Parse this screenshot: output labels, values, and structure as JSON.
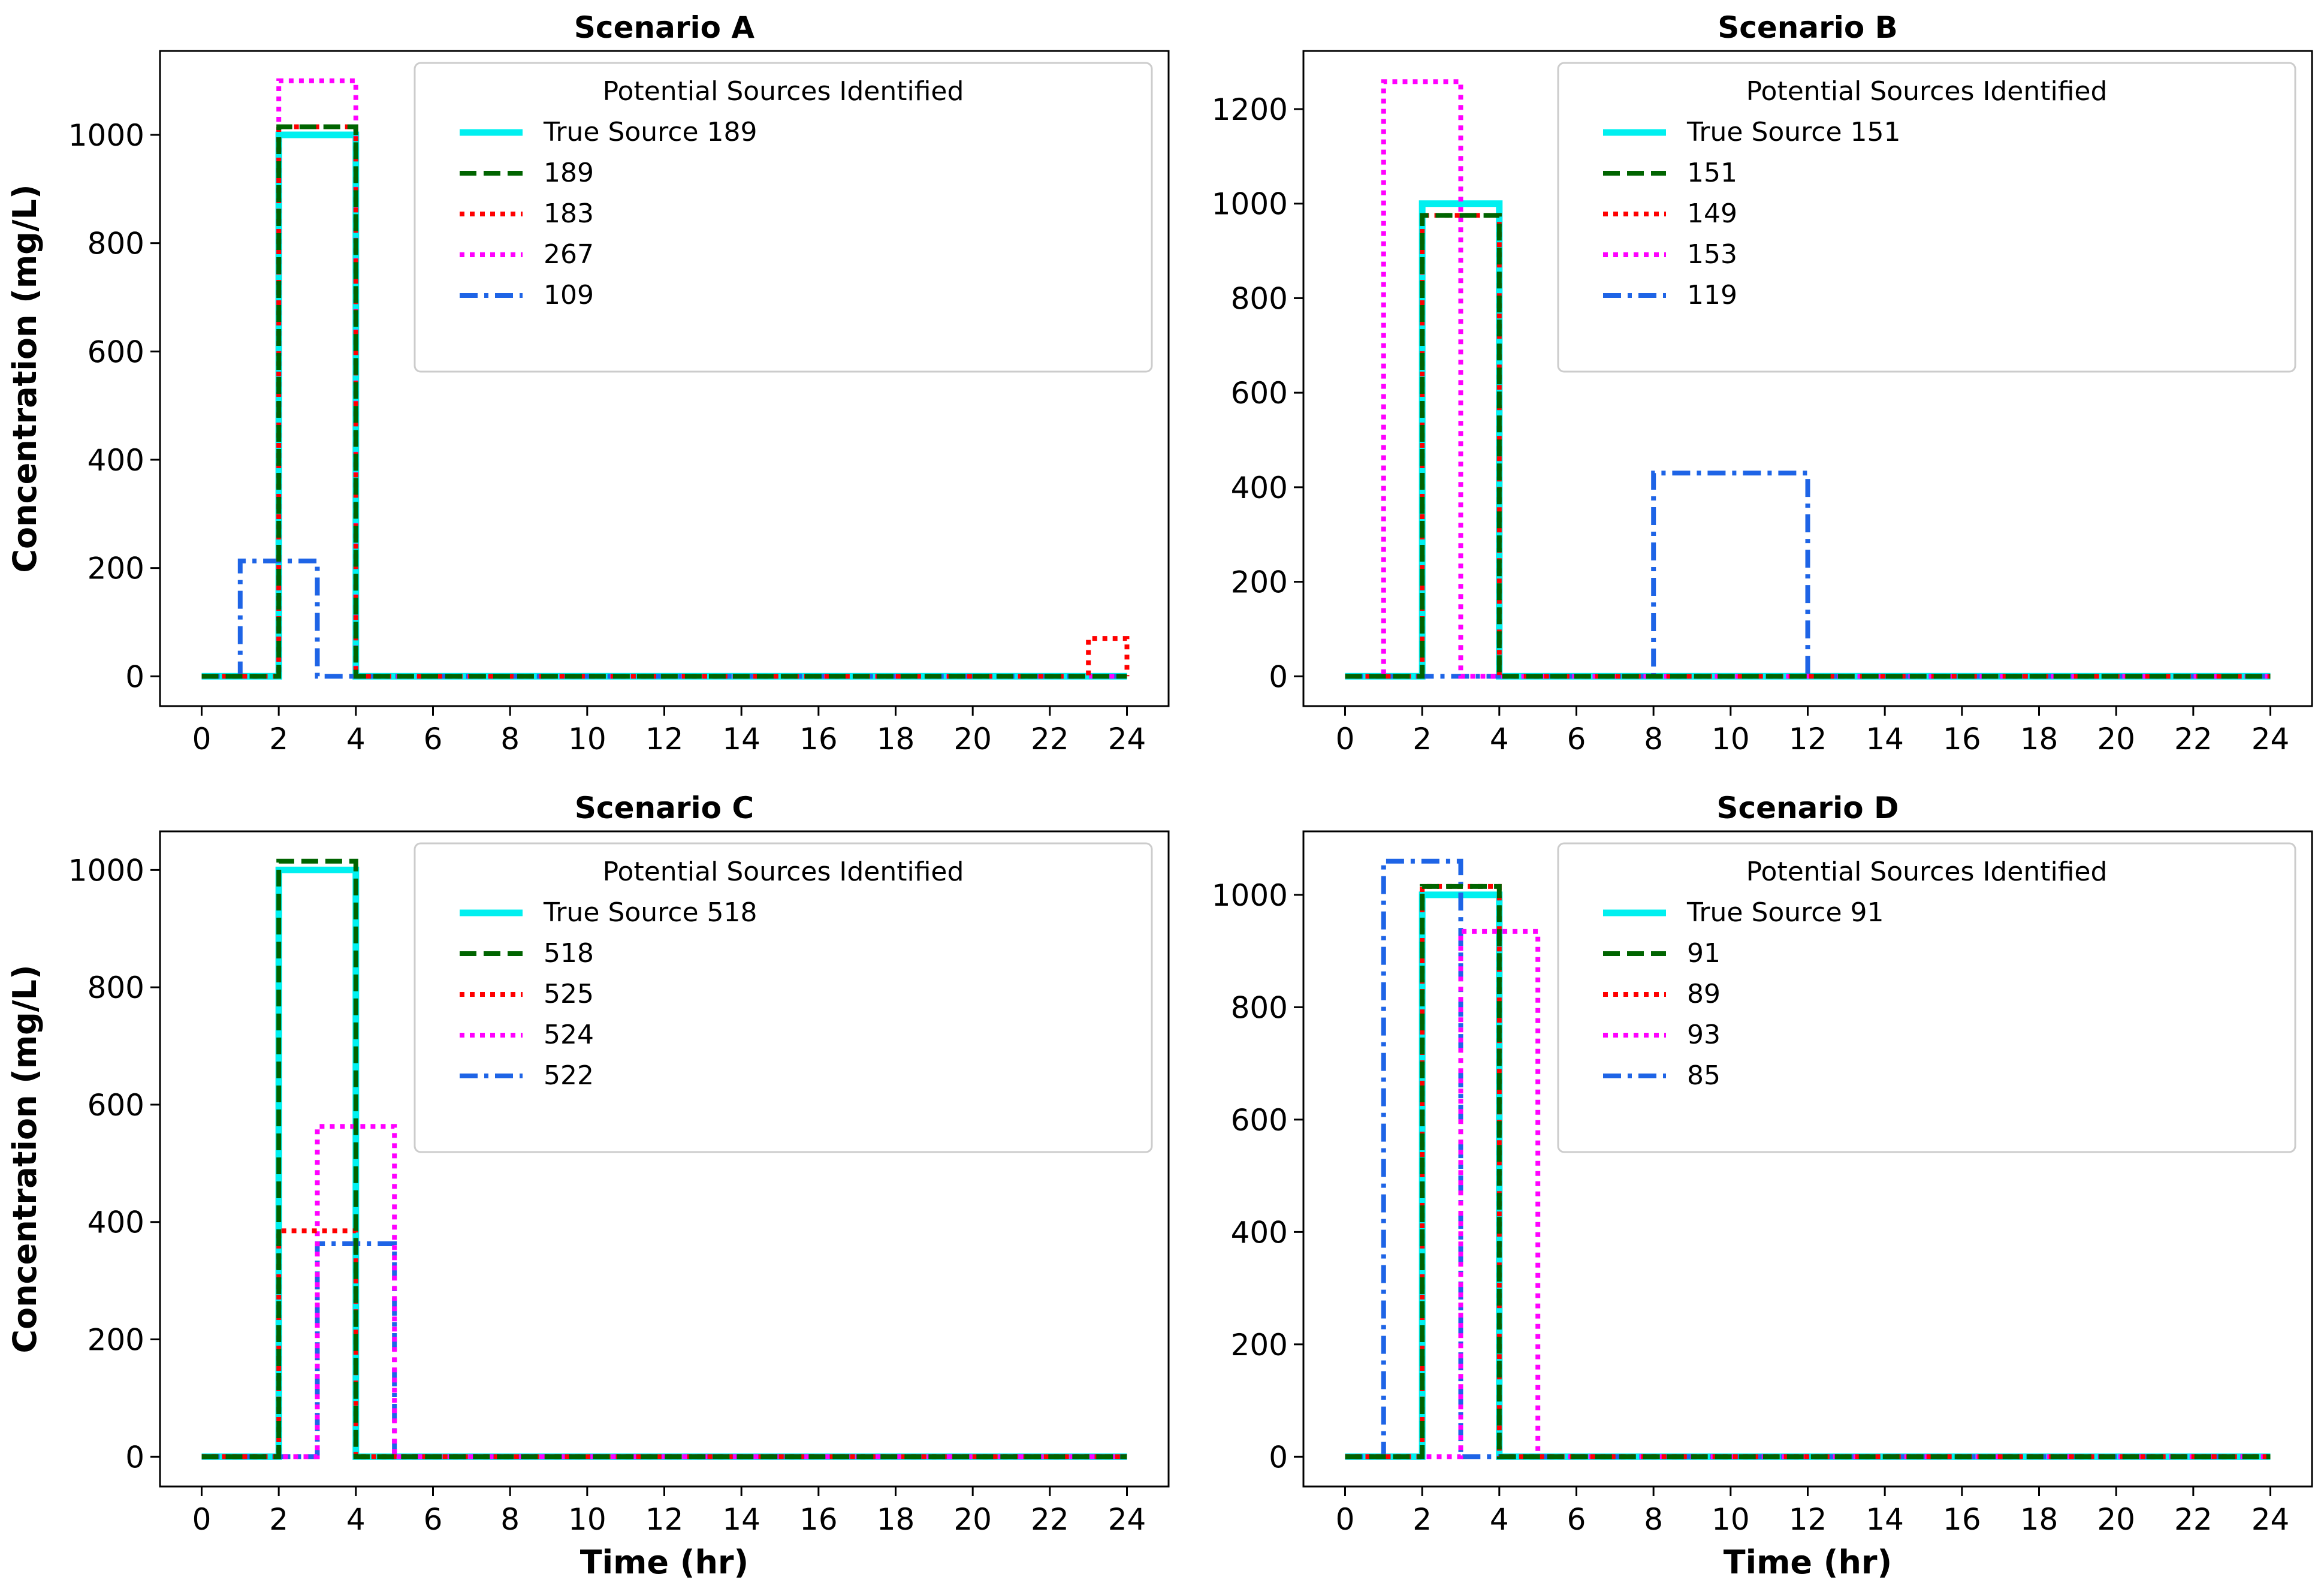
{
  "figure": {
    "xlabel": "Time (hr)",
    "ylabel": "Concentration (mg/L)",
    "legend_title": "Potential Sources Identified",
    "legend_position": "top-right",
    "line_styles": {
      "true": {
        "color": "#00f0f0",
        "dash": "solid"
      },
      "s1": {
        "color": "#006400",
        "dash": "dashed"
      },
      "s2": {
        "color": "#ff0000",
        "dash": "dotted"
      },
      "s3": {
        "color": "#ff00ff",
        "dash": "dotted"
      },
      "s4": {
        "color": "#1e64e6",
        "dash": "dashdot"
      }
    }
  },
  "chart_data": [
    {
      "type": "line",
      "title": "Scenario A",
      "xlabel": "",
      "ylabel": "Concentration (mg/L)",
      "xlim": [
        0,
        24
      ],
      "ylim": [
        0,
        1100
      ],
      "xticks": [
        "0",
        "2",
        "4",
        "6",
        "8",
        "10",
        "12",
        "14",
        "16",
        "18",
        "20",
        "22",
        "24"
      ],
      "yticks": [
        "0",
        "200",
        "400",
        "600",
        "800",
        "1000"
      ],
      "grid": false,
      "series": [
        {
          "name": "True Source 189",
          "key": "true",
          "on": [
            [
              2,
              4,
              1000
            ]
          ]
        },
        {
          "name": "189",
          "key": "s1",
          "on": [
            [
              2,
              4,
              1015
            ]
          ]
        },
        {
          "name": "183",
          "key": "s2",
          "on": [
            [
              2,
              4,
              1015
            ],
            [
              23,
              24,
              70
            ]
          ]
        },
        {
          "name": "267",
          "key": "s3",
          "on": [
            [
              2,
              4,
              1100
            ]
          ]
        },
        {
          "name": "109",
          "key": "s4",
          "on": [
            [
              1,
              3,
              213
            ]
          ]
        }
      ]
    },
    {
      "type": "line",
      "title": "Scenario B",
      "xlabel": "",
      "ylabel": "",
      "xlim": [
        0,
        24
      ],
      "ylim": [
        0,
        1260
      ],
      "xticks": [
        "0",
        "2",
        "4",
        "6",
        "8",
        "10",
        "12",
        "14",
        "16",
        "18",
        "20",
        "22",
        "24"
      ],
      "yticks": [
        "0",
        "200",
        "400",
        "600",
        "800",
        "1000",
        "1200"
      ],
      "grid": false,
      "series": [
        {
          "name": "True Source 151",
          "key": "true",
          "on": [
            [
              2,
              4,
              1000
            ]
          ]
        },
        {
          "name": "151",
          "key": "s1",
          "on": [
            [
              2,
              4,
              975
            ]
          ]
        },
        {
          "name": "149",
          "key": "s2",
          "on": [
            [
              2,
              4,
              975
            ]
          ]
        },
        {
          "name": "153",
          "key": "s3",
          "on": [
            [
              1,
              3,
              1258
            ]
          ]
        },
        {
          "name": "119",
          "key": "s4",
          "on": [
            [
              8,
              12,
              430
            ]
          ]
        }
      ]
    },
    {
      "type": "line",
      "title": "Scenario C",
      "xlabel": "Time (hr)",
      "ylabel": "Concentration (mg/L)",
      "xlim": [
        0,
        24
      ],
      "ylim": [
        0,
        1015
      ],
      "xticks": [
        "0",
        "2",
        "4",
        "6",
        "8",
        "10",
        "12",
        "14",
        "16",
        "18",
        "20",
        "22",
        "24"
      ],
      "yticks": [
        "0",
        "200",
        "400",
        "600",
        "800",
        "1000"
      ],
      "grid": false,
      "series": [
        {
          "name": "True Source 518",
          "key": "true",
          "on": [
            [
              2,
              4,
              1000
            ]
          ]
        },
        {
          "name": "518",
          "key": "s1",
          "on": [
            [
              2,
              4,
              1015
            ]
          ]
        },
        {
          "name": "525",
          "key": "s2",
          "on": [
            [
              2,
              4,
              385
            ]
          ]
        },
        {
          "name": "524",
          "key": "s3",
          "on": [
            [
              3,
              5,
              563
            ]
          ]
        },
        {
          "name": "522",
          "key": "s4",
          "on": [
            [
              3,
              5,
              363
            ]
          ]
        }
      ]
    },
    {
      "type": "line",
      "title": "Scenario D",
      "xlabel": "Time (hr)",
      "ylabel": "",
      "xlim": [
        0,
        24
      ],
      "ylim": [
        0,
        1060
      ],
      "xticks": [
        "0",
        "2",
        "4",
        "6",
        "8",
        "10",
        "12",
        "14",
        "16",
        "18",
        "20",
        "22",
        "24"
      ],
      "yticks": [
        "0",
        "200",
        "400",
        "600",
        "800",
        "1000"
      ],
      "grid": false,
      "series": [
        {
          "name": "True Source 91",
          "key": "true",
          "on": [
            [
              2,
              4,
              1000
            ]
          ]
        },
        {
          "name": "91",
          "key": "s1",
          "on": [
            [
              2,
              4,
              1015
            ]
          ]
        },
        {
          "name": "89",
          "key": "s2",
          "on": [
            [
              2,
              4,
              1015
            ]
          ]
        },
        {
          "name": "93",
          "key": "s3",
          "on": [
            [
              3,
              5,
              935
            ]
          ]
        },
        {
          "name": "85",
          "key": "s4",
          "on": [
            [
              1,
              3,
              1060
            ]
          ]
        }
      ]
    }
  ]
}
